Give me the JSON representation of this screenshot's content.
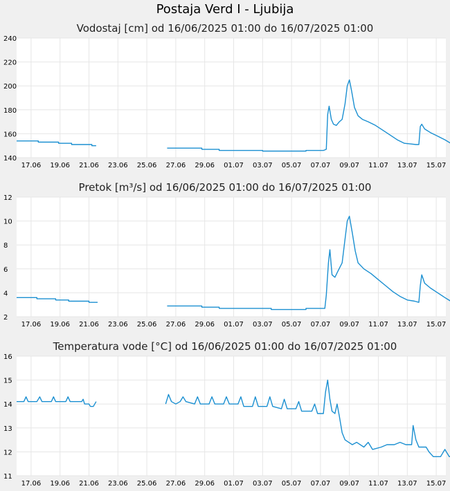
{
  "page": {
    "title": "Postaja Verd I - Ljubija"
  },
  "colors": {
    "plot_bg": "#ffffff",
    "line": "#1a8fd1",
    "grid": "#e6e6e6"
  },
  "chart_data": [
    {
      "type": "line",
      "title": "Vodostaj [cm] od 16/06/2025 01:00 do 16/07/2025 01:00",
      "xlabel": "",
      "ylabel": "",
      "ylim": [
        140,
        240
      ],
      "yticks": [
        "140",
        "160",
        "180",
        "200",
        "220",
        "240"
      ],
      "xlim": [
        0,
        30
      ],
      "xticks": [
        {
          "x": 1,
          "label": "17.06"
        },
        {
          "x": 3,
          "label": "19.06"
        },
        {
          "x": 5,
          "label": "21.06"
        },
        {
          "x": 7,
          "label": "23.06"
        },
        {
          "x": 9,
          "label": "25.06"
        },
        {
          "x": 11,
          "label": "27.06"
        },
        {
          "x": 13,
          "label": "29.06"
        },
        {
          "x": 15,
          "label": "01.07"
        },
        {
          "x": 17,
          "label": "03.07"
        },
        {
          "x": 19,
          "label": "05.07"
        },
        {
          "x": 21,
          "label": "07.07"
        },
        {
          "x": 23,
          "label": "09.07"
        },
        {
          "x": 25,
          "label": "11.07"
        },
        {
          "x": 27,
          "label": "13.07"
        },
        {
          "x": 29,
          "label": "15.07"
        }
      ],
      "grid": true,
      "series": [
        {
          "segments": [
            [
              [
                0,
                154
              ],
              [
                1.5,
                154
              ],
              [
                1.5,
                153
              ],
              [
                2.9,
                153
              ],
              [
                2.9,
                152
              ],
              [
                3.8,
                152
              ],
              [
                3.8,
                151
              ],
              [
                5.2,
                151
              ],
              [
                5.2,
                150
              ],
              [
                5.5,
                150
              ]
            ],
            [
              [
                10.4,
                148
              ],
              [
                12.8,
                148
              ],
              [
                12.8,
                147
              ],
              [
                14,
                147
              ],
              [
                14,
                146
              ],
              [
                17,
                146
              ],
              [
                17,
                145.5
              ],
              [
                20,
                145.5
              ],
              [
                20,
                146
              ],
              [
                21.2,
                146
              ],
              [
                21.4,
                147
              ],
              [
                21.5,
                176
              ],
              [
                21.6,
                183
              ],
              [
                21.75,
                172
              ],
              [
                21.9,
                168
              ],
              [
                22.1,
                167
              ],
              [
                22.3,
                170
              ],
              [
                22.5,
                172
              ],
              [
                22.7,
                185
              ],
              [
                22.85,
                200
              ],
              [
                23,
                205
              ],
              [
                23.15,
                196
              ],
              [
                23.35,
                182
              ],
              [
                23.6,
                175
              ],
              [
                23.9,
                172
              ],
              [
                24.3,
                170
              ],
              [
                24.8,
                167
              ],
              [
                25.3,
                163
              ],
              [
                25.8,
                159
              ],
              [
                26.3,
                155
              ],
              [
                26.8,
                152
              ],
              [
                27.2,
                151.5
              ],
              [
                27.6,
                151
              ],
              [
                27.8,
                151
              ],
              [
                27.9,
                166
              ],
              [
                28,
                168
              ],
              [
                28.2,
                164
              ],
              [
                28.6,
                161
              ],
              [
                29.1,
                158
              ],
              [
                29.6,
                155
              ],
              [
                30,
                152
              ],
              [
                30.4,
                150
              ],
              [
                30.9,
                149.5
              ]
            ]
          ]
        }
      ]
    },
    {
      "type": "line",
      "title": "Pretok [m³/s] od 16/06/2025 01:00 do 16/07/2025 01:00",
      "xlabel": "",
      "ylabel": "",
      "ylim": [
        2,
        12
      ],
      "yticks": [
        "2",
        "4",
        "6",
        "8",
        "10",
        "12"
      ],
      "xlim": [
        0,
        30
      ],
      "xticks": [
        {
          "x": 1,
          "label": "17.06"
        },
        {
          "x": 3,
          "label": "19.06"
        },
        {
          "x": 5,
          "label": "21.06"
        },
        {
          "x": 7,
          "label": "23.06"
        },
        {
          "x": 9,
          "label": "25.06"
        },
        {
          "x": 11,
          "label": "27.06"
        },
        {
          "x": 13,
          "label": "29.06"
        },
        {
          "x": 15,
          "label": "01.07"
        },
        {
          "x": 17,
          "label": "03.07"
        },
        {
          "x": 19,
          "label": "05.07"
        },
        {
          "x": 21,
          "label": "07.07"
        },
        {
          "x": 23,
          "label": "09.07"
        },
        {
          "x": 25,
          "label": "11.07"
        },
        {
          "x": 27,
          "label": "13.07"
        },
        {
          "x": 29,
          "label": "15.07"
        }
      ],
      "grid": true,
      "series": [
        {
          "segments": [
            [
              [
                0,
                3.6
              ],
              [
                1.4,
                3.6
              ],
              [
                1.4,
                3.5
              ],
              [
                2.7,
                3.5
              ],
              [
                2.7,
                3.4
              ],
              [
                3.6,
                3.4
              ],
              [
                3.6,
                3.3
              ],
              [
                5,
                3.3
              ],
              [
                5,
                3.2
              ],
              [
                5.6,
                3.2
              ]
            ],
            [
              [
                10.4,
                2.9
              ],
              [
                12.8,
                2.9
              ],
              [
                12.8,
                2.8
              ],
              [
                14,
                2.8
              ],
              [
                14,
                2.7
              ],
              [
                17.6,
                2.7
              ],
              [
                17.6,
                2.6
              ],
              [
                20,
                2.6
              ],
              [
                20,
                2.7
              ],
              [
                21.3,
                2.7
              ],
              [
                21.4,
                3.8
              ],
              [
                21.55,
                6.5
              ],
              [
                21.65,
                7.6
              ],
              [
                21.8,
                5.5
              ],
              [
                22,
                5.3
              ],
              [
                22.2,
                5.8
              ],
              [
                22.5,
                6.5
              ],
              [
                22.7,
                8.5
              ],
              [
                22.85,
                10
              ],
              [
                23,
                10.4
              ],
              [
                23.2,
                9
              ],
              [
                23.4,
                7.5
              ],
              [
                23.6,
                6.5
              ],
              [
                24,
                6
              ],
              [
                24.5,
                5.6
              ],
              [
                25,
                5.1
              ],
              [
                25.5,
                4.6
              ],
              [
                26,
                4.1
              ],
              [
                26.5,
                3.7
              ],
              [
                27,
                3.4
              ],
              [
                27.5,
                3.3
              ],
              [
                27.8,
                3.2
              ],
              [
                27.9,
                4.6
              ],
              [
                28,
                5.5
              ],
              [
                28.2,
                4.8
              ],
              [
                28.6,
                4.4
              ],
              [
                29.1,
                4
              ],
              [
                29.6,
                3.6
              ],
              [
                30,
                3.3
              ],
              [
                30.5,
                3.1
              ],
              [
                30.9,
                3
              ]
            ]
          ]
        }
      ]
    },
    {
      "type": "line",
      "title": "Temperatura vode [°C] od 16/06/2025 01:00 do 16/07/2025 01:00",
      "xlabel": "",
      "ylabel": "",
      "ylim": [
        11,
        16
      ],
      "yticks": [
        "11",
        "12",
        "13",
        "14",
        "15",
        "16"
      ],
      "xlim": [
        0,
        30
      ],
      "xticks": [
        {
          "x": 1,
          "label": "17.06"
        },
        {
          "x": 3,
          "label": "19.06"
        },
        {
          "x": 5,
          "label": "21.06"
        },
        {
          "x": 7,
          "label": "23.06"
        },
        {
          "x": 9,
          "label": "25.06"
        },
        {
          "x": 11,
          "label": "27.06"
        },
        {
          "x": 13,
          "label": "29.06"
        },
        {
          "x": 15,
          "label": "01.07"
        },
        {
          "x": 17,
          "label": "03.07"
        },
        {
          "x": 19,
          "label": "05.07"
        },
        {
          "x": 21,
          "label": "07.07"
        },
        {
          "x": 23,
          "label": "09.07"
        },
        {
          "x": 25,
          "label": "11.07"
        },
        {
          "x": 27,
          "label": "13.07"
        },
        {
          "x": 29,
          "label": "15.07"
        }
      ],
      "grid": true,
      "series": [
        {
          "segments": [
            [
              [
                0,
                14.1
              ],
              [
                0.5,
                14.1
              ],
              [
                0.65,
                14.3
              ],
              [
                0.8,
                14.1
              ],
              [
                1.4,
                14.1
              ],
              [
                1.6,
                14.3
              ],
              [
                1.75,
                14.1
              ],
              [
                2.4,
                14.1
              ],
              [
                2.55,
                14.3
              ],
              [
                2.7,
                14.1
              ],
              [
                3.4,
                14.1
              ],
              [
                3.55,
                14.3
              ],
              [
                3.7,
                14.1
              ],
              [
                4.5,
                14.1
              ],
              [
                4.6,
                14.2
              ],
              [
                4.7,
                14.0
              ],
              [
                5,
                14.0
              ],
              [
                5.1,
                13.9
              ],
              [
                5.3,
                13.9
              ],
              [
                5.5,
                14.1
              ]
            ],
            [
              [
                10.3,
                14.0
              ],
              [
                10.5,
                14.4
              ],
              [
                10.7,
                14.1
              ],
              [
                11,
                14.0
              ],
              [
                11.3,
                14.1
              ],
              [
                11.5,
                14.3
              ],
              [
                11.7,
                14.1
              ],
              [
                12.3,
                14.0
              ],
              [
                12.5,
                14.3
              ],
              [
                12.7,
                14.0
              ],
              [
                13.3,
                14.0
              ],
              [
                13.5,
                14.3
              ],
              [
                13.7,
                14.0
              ],
              [
                14.3,
                14.0
              ],
              [
                14.5,
                14.3
              ],
              [
                14.7,
                14.0
              ],
              [
                15.3,
                14.0
              ],
              [
                15.5,
                14.3
              ],
              [
                15.7,
                13.9
              ],
              [
                16.3,
                13.9
              ],
              [
                16.5,
                14.3
              ],
              [
                16.7,
                13.9
              ],
              [
                17.3,
                13.9
              ],
              [
                17.5,
                14.3
              ],
              [
                17.7,
                13.9
              ],
              [
                18.3,
                13.8
              ],
              [
                18.5,
                14.2
              ],
              [
                18.7,
                13.8
              ],
              [
                19.3,
                13.8
              ],
              [
                19.5,
                14.1
              ],
              [
                19.7,
                13.7
              ],
              [
                20.4,
                13.7
              ],
              [
                20.6,
                14.0
              ],
              [
                20.8,
                13.6
              ],
              [
                21.2,
                13.6
              ],
              [
                21.35,
                14.5
              ],
              [
                21.5,
                15.0
              ],
              [
                21.65,
                14.2
              ],
              [
                21.8,
                13.7
              ],
              [
                22,
                13.6
              ],
              [
                22.15,
                14.0
              ],
              [
                22.3,
                13.5
              ],
              [
                22.5,
                12.8
              ],
              [
                22.7,
                12.5
              ],
              [
                23.2,
                12.3
              ],
              [
                23.5,
                12.4
              ],
              [
                24,
                12.2
              ],
              [
                24.3,
                12.4
              ],
              [
                24.6,
                12.1
              ],
              [
                25.2,
                12.2
              ],
              [
                25.6,
                12.3
              ],
              [
                26.1,
                12.3
              ],
              [
                26.5,
                12.4
              ],
              [
                26.9,
                12.3
              ],
              [
                27.3,
                12.3
              ],
              [
                27.4,
                13.1
              ],
              [
                27.6,
                12.5
              ],
              [
                27.8,
                12.2
              ],
              [
                28.3,
                12.2
              ],
              [
                28.5,
                12.0
              ],
              [
                28.8,
                11.8
              ],
              [
                29.3,
                11.8
              ],
              [
                29.6,
                12.1
              ],
              [
                29.9,
                11.8
              ],
              [
                30.2,
                11.8
              ]
            ]
          ]
        }
      ]
    }
  ]
}
